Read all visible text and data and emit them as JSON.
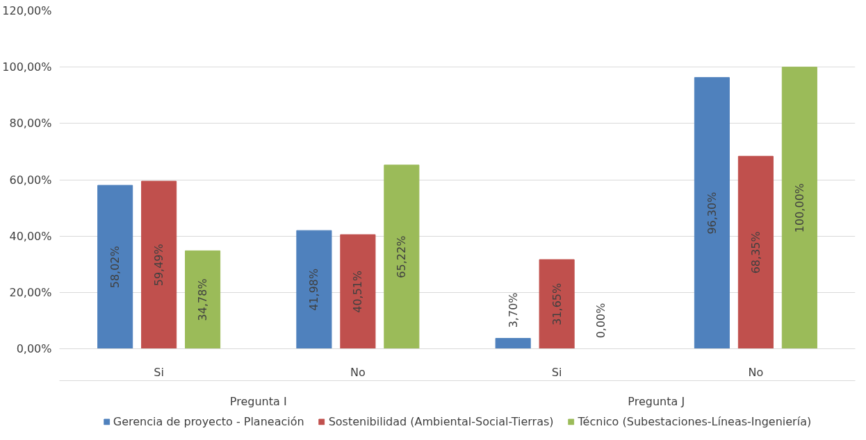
{
  "chart_data": {
    "type": "bar",
    "categories": [
      "Si",
      "No",
      "Si",
      "No"
    ],
    "annotations": [
      "Pregunta I",
      "Pregunta J"
    ],
    "series": [
      {
        "name": "Gerencia de proyecto - Planeación",
        "color": "#4f81bd",
        "values": [
          58.02,
          41.98,
          3.7,
          96.3
        ],
        "value_labels": [
          "58,02%",
          "41,98%",
          "3,70%",
          "96,30%"
        ]
      },
      {
        "name": "Sostenibilidad (Ambiental-Social-Tierras)",
        "color": "#c0504d",
        "values": [
          59.49,
          40.51,
          31.65,
          68.35
        ],
        "value_labels": [
          "59,49%",
          "40,51%",
          "31,65%",
          "68,35%"
        ]
      },
      {
        "name": "Técnico (Subestaciones-Líneas-Ingeniería)",
        "color": "#9bbb59",
        "values": [
          34.78,
          65.22,
          0.0,
          100.0
        ],
        "value_labels": [
          "34,78%",
          "65,22%",
          "0,00%",
          "100,00%"
        ]
      }
    ],
    "ylim": [
      0,
      120
    ],
    "yticks": [
      {
        "value": 0,
        "label": "0,00%"
      },
      {
        "value": 20,
        "label": "20,00%"
      },
      {
        "value": 40,
        "label": "40,00%"
      },
      {
        "value": 60,
        "label": "60,00%"
      },
      {
        "value": 80,
        "label": "80,00%"
      },
      {
        "value": 100,
        "label": "100,00%"
      },
      {
        "value": 120,
        "label": "120,00%"
      }
    ],
    "grid": "y",
    "legend": "bottom"
  }
}
